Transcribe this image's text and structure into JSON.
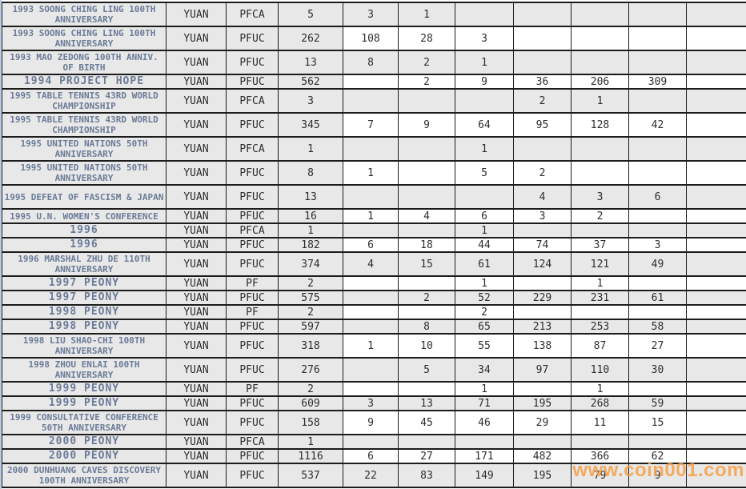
{
  "page": {
    "watermark": "www.coin001.com"
  },
  "colors": {
    "gray_bg": "#e8e8e8",
    "white_bg": "#ffffff",
    "grid_line": "#1c1c1c",
    "description_text": "#6b7b97",
    "data_text": "#2e2e2e",
    "watermark_orange": "#f7a046",
    "left_strip_blue": "#b9cde5"
  },
  "table": {
    "rows": [
      {
        "description": "1993 SOONG CHING LING 100TH ANNIVERSARY",
        "currency": "YUAN",
        "grade": "PFCA",
        "values": [
          "5",
          "3",
          "1",
          "",
          "",
          "",
          "",
          ""
        ]
      },
      {
        "description": "1993 SOONG CHING LING 100TH ANNIVERSARY",
        "currency": "YUAN",
        "grade": "PFUC",
        "values": [
          "262",
          "108",
          "28",
          "3",
          "",
          "",
          "",
          ""
        ]
      },
      {
        "description": "1993 MAO ZEDONG 100TH ANNIV. OF BIRTH",
        "currency": "YUAN",
        "grade": "PFUC",
        "values": [
          "13",
          "8",
          "2",
          "1",
          "",
          "",
          "",
          ""
        ]
      },
      {
        "description": "1994 PROJECT HOPE",
        "currency": "YUAN",
        "grade": "PFUC",
        "values": [
          "562",
          "",
          "2",
          "9",
          "36",
          "206",
          "309",
          ""
        ]
      },
      {
        "description": "1995 TABLE TENNIS 43RD WORLD CHAMPIONSHIP",
        "currency": "YUAN",
        "grade": "PFCA",
        "values": [
          "3",
          "",
          "",
          "",
          "2",
          "1",
          "",
          ""
        ]
      },
      {
        "description": "1995 TABLE TENNIS 43RD WORLD CHAMPIONSHIP",
        "currency": "YUAN",
        "grade": "PFUC",
        "values": [
          "345",
          "7",
          "9",
          "64",
          "95",
          "128",
          "42",
          ""
        ]
      },
      {
        "description": "1995 UNITED NATIONS 50TH ANNIVERSARY",
        "currency": "YUAN",
        "grade": "PFCA",
        "values": [
          "1",
          "",
          "",
          "1",
          "",
          "",
          "",
          ""
        ]
      },
      {
        "description": "1995 UNITED NATIONS 50TH ANNIVERSARY",
        "currency": "YUAN",
        "grade": "PFUC",
        "values": [
          "8",
          "1",
          "",
          "5",
          "2",
          "",
          "",
          ""
        ]
      },
      {
        "description": "1995 DEFEAT OF FASCISM & JAPAN",
        "currency": "YUAN",
        "grade": "PFUC",
        "values": [
          "13",
          "",
          "",
          "",
          "4",
          "3",
          "6",
          ""
        ]
      },
      {
        "description": "1995 U.N. WOMEN'S CONFERENCE",
        "currency": "YUAN",
        "grade": "PFUC",
        "values": [
          "16",
          "1",
          "4",
          "6",
          "3",
          "2",
          "",
          ""
        ]
      },
      {
        "description": "1996",
        "currency": "YUAN",
        "grade": "PFCA",
        "values": [
          "1",
          "",
          "",
          "1",
          "",
          "",
          "",
          ""
        ]
      },
      {
        "description": "1996",
        "currency": "YUAN",
        "grade": "PFUC",
        "values": [
          "182",
          "6",
          "18",
          "44",
          "74",
          "37",
          "3",
          ""
        ]
      },
      {
        "description": "1996 MARSHAL ZHU DE 110TH ANNIVERSARY",
        "currency": "YUAN",
        "grade": "PFUC",
        "values": [
          "374",
          "4",
          "15",
          "61",
          "124",
          "121",
          "49",
          ""
        ]
      },
      {
        "description": "1997 PEONY",
        "currency": "YUAN",
        "grade": "PF",
        "values": [
          "2",
          "",
          "",
          "1",
          "",
          "1",
          "",
          ""
        ]
      },
      {
        "description": "1997 PEONY",
        "currency": "YUAN",
        "grade": "PFUC",
        "values": [
          "575",
          "",
          "2",
          "52",
          "229",
          "231",
          "61",
          ""
        ]
      },
      {
        "description": "1998 PEONY",
        "currency": "YUAN",
        "grade": "PF",
        "values": [
          "2",
          "",
          "",
          "2",
          "",
          "",
          "",
          ""
        ]
      },
      {
        "description": "1998 PEONY",
        "currency": "YUAN",
        "grade": "PFUC",
        "values": [
          "597",
          "",
          "8",
          "65",
          "213",
          "253",
          "58",
          ""
        ]
      },
      {
        "description": "1998 LIU SHAO-CHI 100TH ANNIVERSARY",
        "currency": "YUAN",
        "grade": "PFUC",
        "values": [
          "318",
          "1",
          "10",
          "55",
          "138",
          "87",
          "27",
          ""
        ]
      },
      {
        "description": "1998 ZHOU ENLAI 100TH ANNIVERSARY",
        "currency": "YUAN",
        "grade": "PFUC",
        "values": [
          "276",
          "",
          "5",
          "34",
          "97",
          "110",
          "30",
          ""
        ]
      },
      {
        "description": "1999 PEONY",
        "currency": "YUAN",
        "grade": "PF",
        "values": [
          "2",
          "",
          "",
          "1",
          "",
          "1",
          "",
          ""
        ]
      },
      {
        "description": "1999 PEONY",
        "currency": "YUAN",
        "grade": "PFUC",
        "values": [
          "609",
          "3",
          "13",
          "71",
          "195",
          "268",
          "59",
          ""
        ]
      },
      {
        "description": "1999 CONSULTATIVE CONFERENCE 50TH ANNIVERSARY",
        "currency": "YUAN",
        "grade": "PFUC",
        "values": [
          "158",
          "9",
          "45",
          "46",
          "29",
          "11",
          "15",
          ""
        ]
      },
      {
        "description": "2000 PEONY",
        "currency": "YUAN",
        "grade": "PFCA",
        "values": [
          "1",
          "",
          "",
          "",
          "",
          "",
          "",
          ""
        ]
      },
      {
        "description": "2000 PEONY",
        "currency": "YUAN",
        "grade": "PFUC",
        "values": [
          "1116",
          "6",
          "27",
          "171",
          "482",
          "366",
          "62",
          ""
        ]
      },
      {
        "description": "2000 DUNHUANG CAVES DISCOVERY 100TH ANNIVERSARY",
        "currency": "YUAN",
        "grade": "PFUC",
        "values": [
          "537",
          "22",
          "83",
          "149",
          "195",
          "79",
          "9",
          ""
        ]
      }
    ]
  }
}
